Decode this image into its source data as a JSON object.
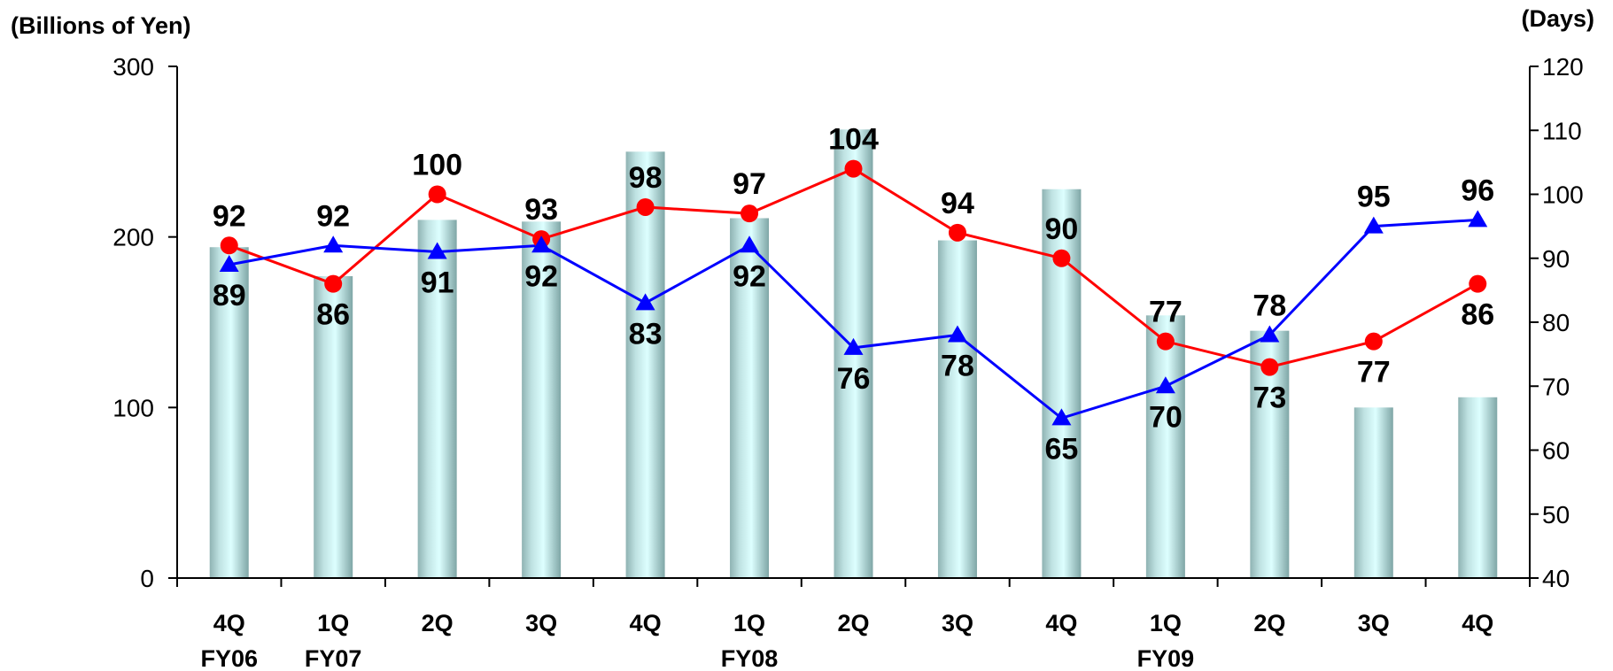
{
  "chart_data": {
    "type": "bar+line",
    "y_left_label": "(Billions of Yen)",
    "y_right_label": "(Days)",
    "y_left_ticks": [
      "0",
      "100",
      "200",
      "300"
    ],
    "y_right_ticks": [
      "40",
      "50",
      "60",
      "70",
      "80",
      "90",
      "100",
      "110",
      "120"
    ],
    "y_left_range": [
      0,
      300
    ],
    "y_right_range": [
      40,
      120
    ],
    "categories": [
      "4Q",
      "1Q",
      "2Q",
      "3Q",
      "4Q",
      "1Q",
      "2Q",
      "3Q",
      "4Q",
      "1Q",
      "2Q",
      "3Q",
      "4Q"
    ],
    "fiscal_labels": [
      "FY06",
      "FY07",
      "",
      "",
      "",
      "FY08",
      "",
      "",
      "",
      "FY09",
      "",
      "",
      ""
    ],
    "bar_values": [
      194,
      177,
      210,
      209,
      250,
      211,
      263,
      198,
      228,
      154,
      145,
      100,
      106
    ],
    "series": [
      {
        "color": "#ff0000",
        "marker": "circle",
        "values": [
          92,
          86,
          100,
          93,
          98,
          97,
          104,
          94,
          90,
          77,
          73,
          77,
          86
        ],
        "labels": [
          "92",
          "86",
          "100",
          "93",
          "98",
          "97",
          "104",
          "94",
          "90",
          "77",
          "73",
          "77",
          "86"
        ]
      },
      {
        "color": "#0000ff",
        "marker": "triangle",
        "values": [
          89,
          92,
          91,
          92,
          83,
          92,
          76,
          78,
          65,
          70,
          78,
          95,
          96
        ],
        "labels": [
          "89",
          "92",
          "91",
          "92",
          "83",
          "92",
          "76",
          "78",
          "65",
          "70",
          "78",
          "95",
          "96"
        ]
      }
    ],
    "grid": false,
    "legend": "none"
  }
}
